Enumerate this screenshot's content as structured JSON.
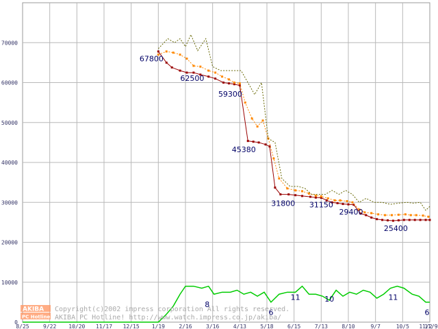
{
  "chart_data": {
    "type": "line",
    "x_ticks": [
      "8/25",
      "9/22",
      "10/20",
      "11/17",
      "12/15",
      "1/19",
      "2/16",
      "3/16",
      "4/13",
      "5/18",
      "6/15",
      "7/13",
      "8/10",
      "9/7",
      "10/5",
      "11/2",
      "11/9"
    ],
    "y_ticks": [
      0,
      10000,
      20000,
      30000,
      40000,
      50000,
      60000,
      70000
    ],
    "ylim": [
      0,
      80000
    ],
    "grid": true,
    "series": [
      {
        "color": "#990000",
        "style": "solid-markers",
        "points": [
          [
            5.0,
            67800
          ],
          [
            5.3,
            65000
          ],
          [
            5.5,
            63800
          ],
          [
            5.8,
            63000
          ],
          [
            6.05,
            62500
          ],
          [
            6.3,
            62500
          ],
          [
            6.55,
            62000
          ],
          [
            6.85,
            61500
          ],
          [
            7.1,
            61000
          ],
          [
            7.4,
            60000
          ],
          [
            7.6,
            59800
          ],
          [
            7.8,
            59600
          ],
          [
            8.0,
            59300
          ],
          [
            8.3,
            45380
          ],
          [
            8.5,
            45200
          ],
          [
            8.7,
            45000
          ],
          [
            8.95,
            44500
          ],
          [
            9.1,
            44000
          ],
          [
            9.3,
            33700
          ],
          [
            9.5,
            32000
          ],
          [
            9.8,
            32000
          ],
          [
            10.05,
            31800
          ],
          [
            10.3,
            31600
          ],
          [
            10.6,
            31400
          ],
          [
            10.8,
            31200
          ],
          [
            11.0,
            31150
          ],
          [
            11.2,
            30500
          ],
          [
            11.4,
            30000
          ],
          [
            11.6,
            29800
          ],
          [
            11.8,
            29600
          ],
          [
            12.0,
            29500
          ],
          [
            12.2,
            29400
          ],
          [
            12.45,
            27200
          ],
          [
            12.65,
            26800
          ],
          [
            12.85,
            26200
          ],
          [
            13.05,
            25800
          ],
          [
            13.25,
            25600
          ],
          [
            13.45,
            25500
          ],
          [
            13.65,
            25400
          ],
          [
            13.85,
            25500
          ],
          [
            14.05,
            25600
          ],
          [
            14.25,
            25600
          ],
          [
            14.45,
            25600
          ],
          [
            14.65,
            25600
          ],
          [
            14.85,
            25600
          ],
          [
            15.0,
            25600
          ]
        ]
      },
      {
        "color": "#ff8800",
        "style": "dotted-markers",
        "points": [
          [
            5.0,
            67000
          ],
          [
            5.3,
            67800
          ],
          [
            5.55,
            67500
          ],
          [
            5.8,
            67000
          ],
          [
            6.05,
            66000
          ],
          [
            6.3,
            64200
          ],
          [
            6.55,
            64000
          ],
          [
            6.85,
            63000
          ],
          [
            7.1,
            62500
          ],
          [
            7.35,
            61500
          ],
          [
            7.6,
            60800
          ],
          [
            7.8,
            60000
          ],
          [
            8.0,
            59800
          ],
          [
            8.2,
            55000
          ],
          [
            8.45,
            51000
          ],
          [
            8.65,
            49000
          ],
          [
            8.85,
            50500
          ],
          [
            9.05,
            46000
          ],
          [
            9.25,
            41000
          ],
          [
            9.45,
            36000
          ],
          [
            9.75,
            33500
          ],
          [
            10.05,
            33000
          ],
          [
            10.3,
            32800
          ],
          [
            10.55,
            32200
          ],
          [
            10.8,
            31700
          ],
          [
            11.0,
            31500
          ],
          [
            11.25,
            31000
          ],
          [
            11.5,
            30500
          ],
          [
            11.7,
            30500
          ],
          [
            11.95,
            30300
          ],
          [
            12.15,
            30000
          ],
          [
            12.4,
            28200
          ],
          [
            12.6,
            27500
          ],
          [
            12.85,
            27300
          ],
          [
            13.1,
            27000
          ],
          [
            13.35,
            26800
          ],
          [
            13.6,
            26800
          ],
          [
            13.85,
            26900
          ],
          [
            14.1,
            27000
          ],
          [
            14.3,
            26800
          ],
          [
            14.5,
            26800
          ],
          [
            14.75,
            26700
          ],
          [
            14.95,
            26400
          ]
        ]
      },
      {
        "color": "#666600",
        "style": "dotted",
        "points": [
          [
            5.0,
            68500
          ],
          [
            5.35,
            71000
          ],
          [
            5.6,
            70000
          ],
          [
            5.8,
            71000
          ],
          [
            6.0,
            69000
          ],
          [
            6.2,
            72000
          ],
          [
            6.45,
            68000
          ],
          [
            6.75,
            71000
          ],
          [
            7.0,
            64000
          ],
          [
            7.3,
            63000
          ],
          [
            7.55,
            63000
          ],
          [
            7.8,
            63000
          ],
          [
            8.05,
            63000
          ],
          [
            8.3,
            60000
          ],
          [
            8.55,
            57000
          ],
          [
            8.8,
            60000
          ],
          [
            9.05,
            46000
          ],
          [
            9.3,
            45000
          ],
          [
            9.55,
            36000
          ],
          [
            9.85,
            34000
          ],
          [
            10.15,
            34000
          ],
          [
            10.4,
            33500
          ],
          [
            10.65,
            32000
          ],
          [
            10.9,
            32000
          ],
          [
            11.15,
            32000
          ],
          [
            11.4,
            33000
          ],
          [
            11.65,
            32000
          ],
          [
            11.9,
            33000
          ],
          [
            12.15,
            32000
          ],
          [
            12.4,
            30000
          ],
          [
            12.65,
            31000
          ],
          [
            12.95,
            30000
          ],
          [
            13.25,
            30000
          ],
          [
            13.55,
            29500
          ],
          [
            13.85,
            29800
          ],
          [
            14.15,
            30000
          ],
          [
            14.4,
            29800
          ],
          [
            14.65,
            30000
          ],
          [
            14.85,
            28000
          ],
          [
            15.0,
            29000
          ]
        ]
      },
      {
        "color": "#00cc00",
        "style": "solid",
        "points": [
          [
            0,
            0
          ],
          [
            5.0,
            0
          ],
          [
            5.3,
            2000
          ],
          [
            5.55,
            4000
          ],
          [
            5.8,
            7000
          ],
          [
            6.0,
            9000
          ],
          [
            6.3,
            9000
          ],
          [
            6.6,
            8500
          ],
          [
            6.85,
            9000
          ],
          [
            7.05,
            7000
          ],
          [
            7.35,
            7500
          ],
          [
            7.65,
            7500
          ],
          [
            7.9,
            8000
          ],
          [
            8.15,
            7000
          ],
          [
            8.4,
            7500
          ],
          [
            8.65,
            6500
          ],
          [
            8.9,
            7500
          ],
          [
            9.15,
            5000
          ],
          [
            9.45,
            7000
          ],
          [
            9.75,
            7500
          ],
          [
            10.05,
            7500
          ],
          [
            10.3,
            9000
          ],
          [
            10.55,
            7000
          ],
          [
            10.8,
            7000
          ],
          [
            11.05,
            6500
          ],
          [
            11.3,
            5500
          ],
          [
            11.55,
            8000
          ],
          [
            11.8,
            6500
          ],
          [
            12.05,
            7500
          ],
          [
            12.3,
            7000
          ],
          [
            12.55,
            8000
          ],
          [
            12.8,
            7500
          ],
          [
            13.05,
            6000
          ],
          [
            13.3,
            7000
          ],
          [
            13.55,
            8500
          ],
          [
            13.8,
            9000
          ],
          [
            14.05,
            8500
          ],
          [
            14.35,
            7000
          ],
          [
            14.6,
            6500
          ],
          [
            14.85,
            5000
          ],
          [
            15.0,
            5000
          ]
        ]
      }
    ],
    "annotations": [
      {
        "text": "67800",
        "x": 4.75,
        "y": 66000
      },
      {
        "text": "62500",
        "x": 6.25,
        "y": 61100
      },
      {
        "text": "59300",
        "x": 7.65,
        "y": 57200
      },
      {
        "text": "45380",
        "x": 8.15,
        "y": 43300
      },
      {
        "text": "31800",
        "x": 9.6,
        "y": 29800
      },
      {
        "text": "31150",
        "x": 11.0,
        "y": 29400
      },
      {
        "text": "29400",
        "x": 12.1,
        "y": 27600
      },
      {
        "text": "25400",
        "x": 13.75,
        "y": 23500
      },
      {
        "text": "8",
        "x": 6.8,
        "y": 4500
      },
      {
        "text": "6",
        "x": 9.15,
        "y": 2500
      },
      {
        "text": "11",
        "x": 10.05,
        "y": 6300
      },
      {
        "text": "10",
        "x": 11.3,
        "y": 5800
      },
      {
        "text": "11",
        "x": 13.65,
        "y": 6300
      },
      {
        "text": "6",
        "x": 14.9,
        "y": 2500
      }
    ]
  },
  "footer": {
    "copyright": "Copyright(c)2002 impress corporation All rights reserved.",
    "url": "AKIBA PC Hotline! http://www.watch.impress.co.jp/akiba/",
    "logo_top": "AKIBA",
    "logo_bottom": "PC Hotline!",
    "logo_color": "#ff9966"
  }
}
